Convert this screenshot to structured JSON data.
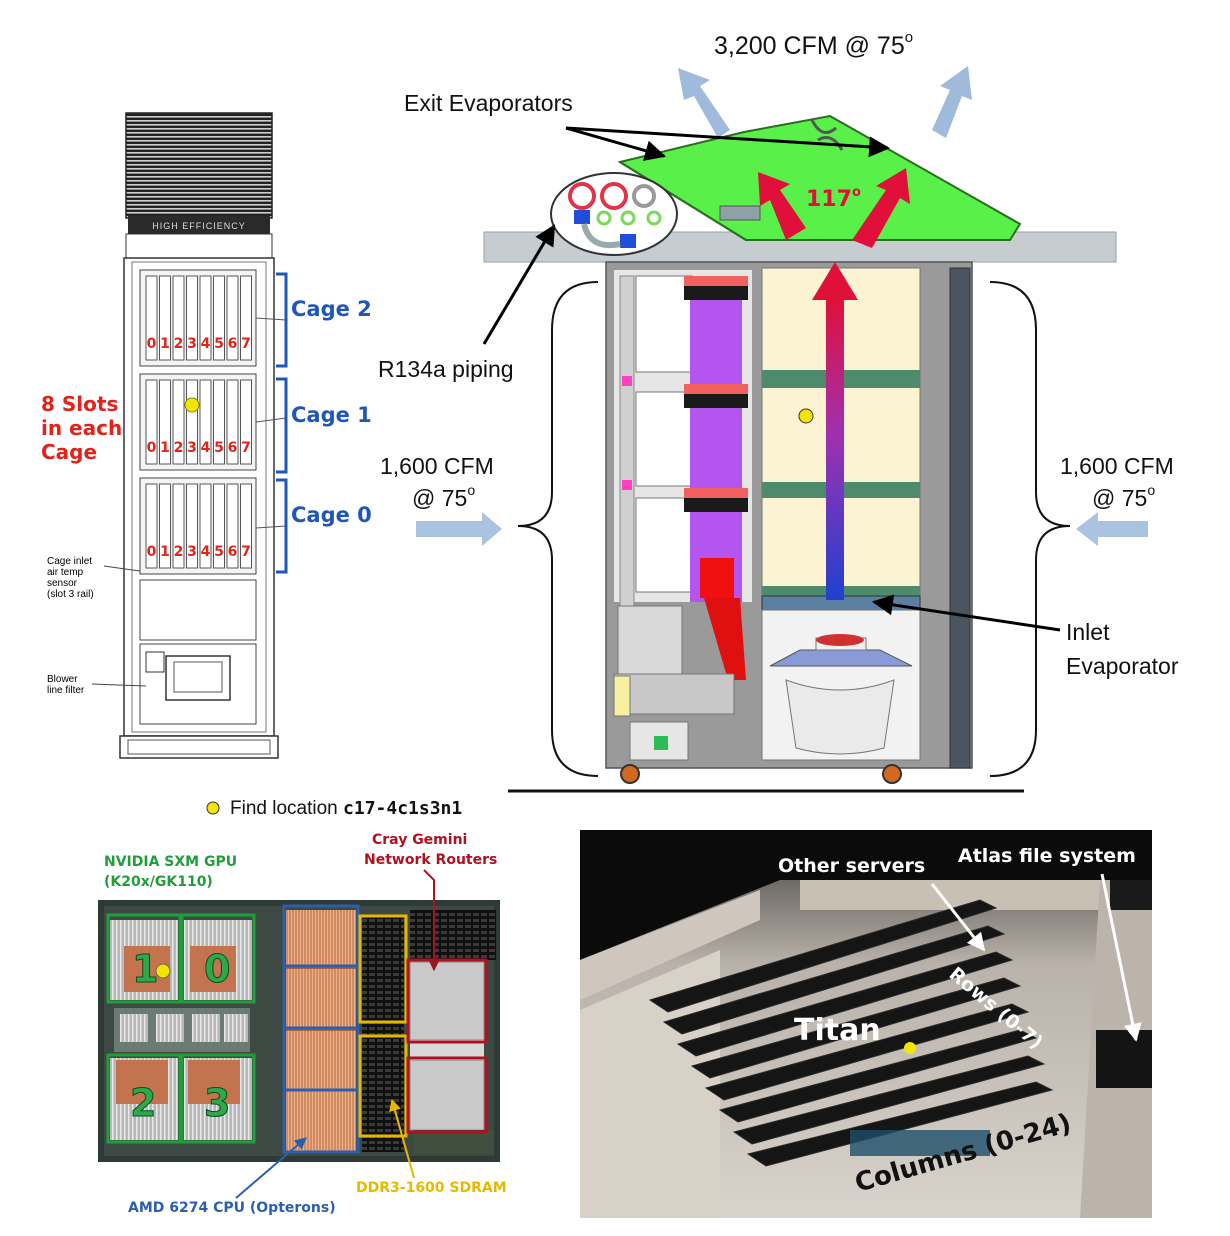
{
  "rack": {
    "cages": [
      "Cage 2",
      "Cage 1",
      "Cage 0"
    ],
    "slot_digits": [
      "0",
      "1",
      "2",
      "3",
      "4",
      "5",
      "6",
      "7"
    ],
    "slots_label": [
      "8 Slots",
      "in each",
      "Cage"
    ],
    "sensor_label": [
      "Cage inlet",
      "air temp",
      "sensor",
      "(slot 3 rail)"
    ],
    "blower_label": [
      "Blower",
      "line filter"
    ]
  },
  "airflow": {
    "top_cfm": "3,200 CFM @ 75",
    "top_deg": "o",
    "exit_evaporators": "Exit Evaporators",
    "exit_temp": "117",
    "exit_deg": "o",
    "r134a": "R134a piping",
    "left_cfm_line1": "1,600 CFM",
    "left_cfm_line2": "@ 75",
    "right_cfm_line1": "1,600 CFM",
    "right_cfm_line2": "@ 75",
    "deg": "o",
    "inlet_line1": "Inlet",
    "inlet_line2": "Evaporator"
  },
  "legend": {
    "prefix": "Find location ",
    "code": "c17-4c1s3n1",
    "marker_color": "#f2e600"
  },
  "board": {
    "gpu_title_1": "NVIDIA SXM GPU",
    "gpu_title_2": "(K20x/GK110)",
    "router_title_1": "Cray Gemini",
    "router_title_2": "Network Routers",
    "gpu_numbers": [
      "1",
      "0",
      "2",
      "3"
    ],
    "cpu_label": "AMD 6274 CPU (Opterons)",
    "dram_label": "DDR3-1600 SDRAM",
    "colors": {
      "gpu": "#1f9e3a",
      "router": "#b01020",
      "cpu": "#2a5fb0",
      "dram": "#e8b800"
    }
  },
  "room": {
    "other_servers": "Other servers",
    "atlas": "Atlas file system",
    "titan": "Titan",
    "rows": "Rows (0-7)",
    "columns": "Columns (0-24)"
  }
}
